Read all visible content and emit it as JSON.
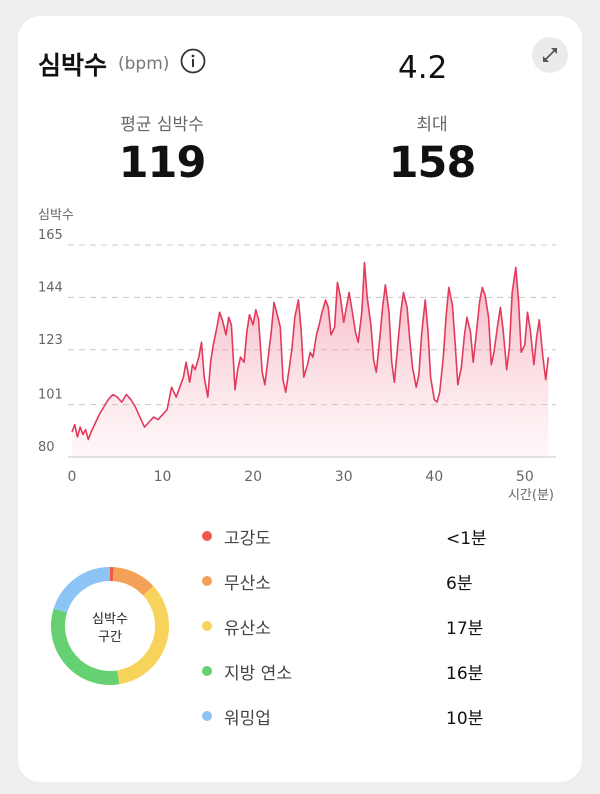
{
  "header": {
    "title": "심박수",
    "unit": "(bpm)",
    "top_value": "4.2"
  },
  "stats": {
    "average": {
      "label": "평균 심박수",
      "value": "119"
    },
    "max": {
      "label": "최대",
      "value": "158"
    }
  },
  "chart_data": {
    "type": "area",
    "ylabel": "심박수",
    "xlabel": "시간(분)",
    "xlim": [
      0,
      53
    ],
    "ylim": [
      80,
      165
    ],
    "y_ticks": [
      80,
      101,
      123,
      144,
      165
    ],
    "x_ticks": [
      0,
      10,
      20,
      30,
      40,
      50
    ],
    "grid": "horizontal-dashed",
    "color": "#e23a5a",
    "x": [
      0,
      0.3,
      0.6,
      0.9,
      1.2,
      1.5,
      1.8,
      2.1,
      2.5,
      3,
      3.5,
      4,
      4.5,
      5,
      5.5,
      6,
      6.5,
      7,
      7.5,
      8,
      8.5,
      9,
      9.5,
      10,
      10.5,
      11,
      11.5,
      12,
      12.3,
      12.6,
      13,
      13.3,
      13.6,
      14,
      14.3,
      14.6,
      15,
      15.3,
      15.6,
      16,
      16.3,
      16.6,
      17,
      17.3,
      17.6,
      18,
      18.3,
      18.6,
      19,
      19.3,
      19.6,
      20,
      20.3,
      20.6,
      21,
      21.3,
      21.6,
      22,
      22.3,
      22.6,
      23,
      23.3,
      23.6,
      24,
      24.3,
      24.6,
      25,
      25.3,
      25.6,
      26,
      26.3,
      26.6,
      27,
      27.3,
      27.6,
      28,
      28.3,
      28.6,
      29,
      29.3,
      29.6,
      30,
      30.3,
      30.6,
      31,
      31.3,
      31.6,
      32,
      32.3,
      32.6,
      33,
      33.3,
      33.6,
      34,
      34.3,
      34.6,
      35,
      35.3,
      35.6,
      36,
      36.3,
      36.6,
      37,
      37.3,
      37.6,
      38,
      38.3,
      38.6,
      39,
      39.3,
      39.6,
      40,
      40.3,
      40.6,
      41,
      41.3,
      41.6,
      42,
      42.3,
      42.6,
      43,
      43.3,
      43.6,
      44,
      44.3,
      44.6,
      45,
      45.3,
      45.6,
      46,
      46.3,
      46.6,
      47,
      47.3,
      47.6,
      48,
      48.3,
      48.6,
      49,
      49.3,
      49.6,
      50,
      50.3,
      50.6,
      51,
      51.3,
      51.6,
      52,
      52.3,
      52.6
    ],
    "y": [
      90,
      93,
      88,
      92,
      89,
      91,
      87,
      90,
      93,
      97,
      100,
      103,
      105,
      104,
      102,
      105,
      103,
      100,
      96,
      92,
      94,
      96,
      95,
      97,
      99,
      108,
      104,
      109,
      112,
      118,
      110,
      117,
      115,
      120,
      126,
      112,
      104,
      118,
      125,
      132,
      138,
      135,
      129,
      136,
      133,
      107,
      115,
      120,
      118,
      130,
      137,
      133,
      139,
      135,
      114,
      109,
      118,
      130,
      142,
      138,
      132,
      111,
      106,
      116,
      124,
      136,
      143,
      131,
      112,
      117,
      122,
      120,
      129,
      133,
      138,
      143,
      140,
      129,
      132,
      150,
      145,
      134,
      140,
      146,
      137,
      130,
      126,
      138,
      158,
      144,
      133,
      119,
      114,
      128,
      140,
      149,
      138,
      118,
      110,
      126,
      138,
      146,
      140,
      127,
      116,
      108,
      113,
      129,
      143,
      131,
      112,
      103,
      102,
      106,
      120,
      136,
      148,
      141,
      126,
      109,
      116,
      128,
      136,
      130,
      118,
      128,
      142,
      148,
      145,
      136,
      117,
      122,
      133,
      140,
      131,
      115,
      124,
      146,
      156,
      143,
      122,
      125,
      138,
      131,
      117,
      128,
      135,
      120,
      111,
      120
    ]
  },
  "zones": {
    "center_label_line1": "심박수",
    "center_label_line2": "구간",
    "items": [
      {
        "label": "고강도",
        "value": "<1분",
        "color": "#ef5a4e",
        "minutes": 0.5
      },
      {
        "label": "무산소",
        "value": "6분",
        "color": "#f4a158",
        "minutes": 6
      },
      {
        "label": "유산소",
        "value": "17분",
        "color": "#f8d35c",
        "minutes": 17
      },
      {
        "label": "지방 연소",
        "value": "16분",
        "color": "#65d173",
        "minutes": 16
      },
      {
        "label": "워밍업",
        "value": "10분",
        "color": "#8cc5f5",
        "minutes": 10
      }
    ]
  }
}
